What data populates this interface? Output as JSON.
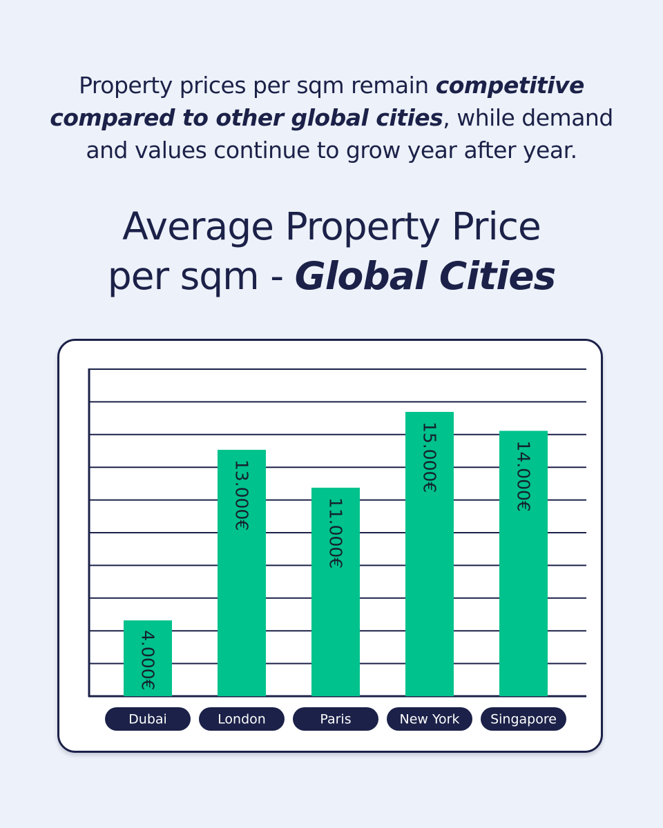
{
  "intro": {
    "part1": "Property prices per sqm remain ",
    "bold": "competitive compared to other global cities",
    "part2": ", while demand and values continue to grow year after year."
  },
  "title": {
    "line1": "Average Property Price",
    "line2_plain": "per sqm - ",
    "line2_bold": "Global Cities"
  },
  "colors": {
    "background": "#edf1f9",
    "navy": "#1b2148",
    "bar": "#00c28c",
    "card": "#ffffff"
  },
  "chart_data": {
    "type": "bar",
    "categories": [
      "Dubai",
      "London",
      "Paris",
      "New York",
      "Singapore"
    ],
    "values": [
      4000,
      13000,
      11000,
      15000,
      14000
    ],
    "value_labels": [
      "4.000€",
      "13.000€",
      "11.000€",
      "15.000€",
      "14.000€"
    ],
    "title": "",
    "xlabel": "",
    "ylabel": "",
    "ylim": [
      0,
      17000
    ],
    "grid": true,
    "legend": "none"
  }
}
